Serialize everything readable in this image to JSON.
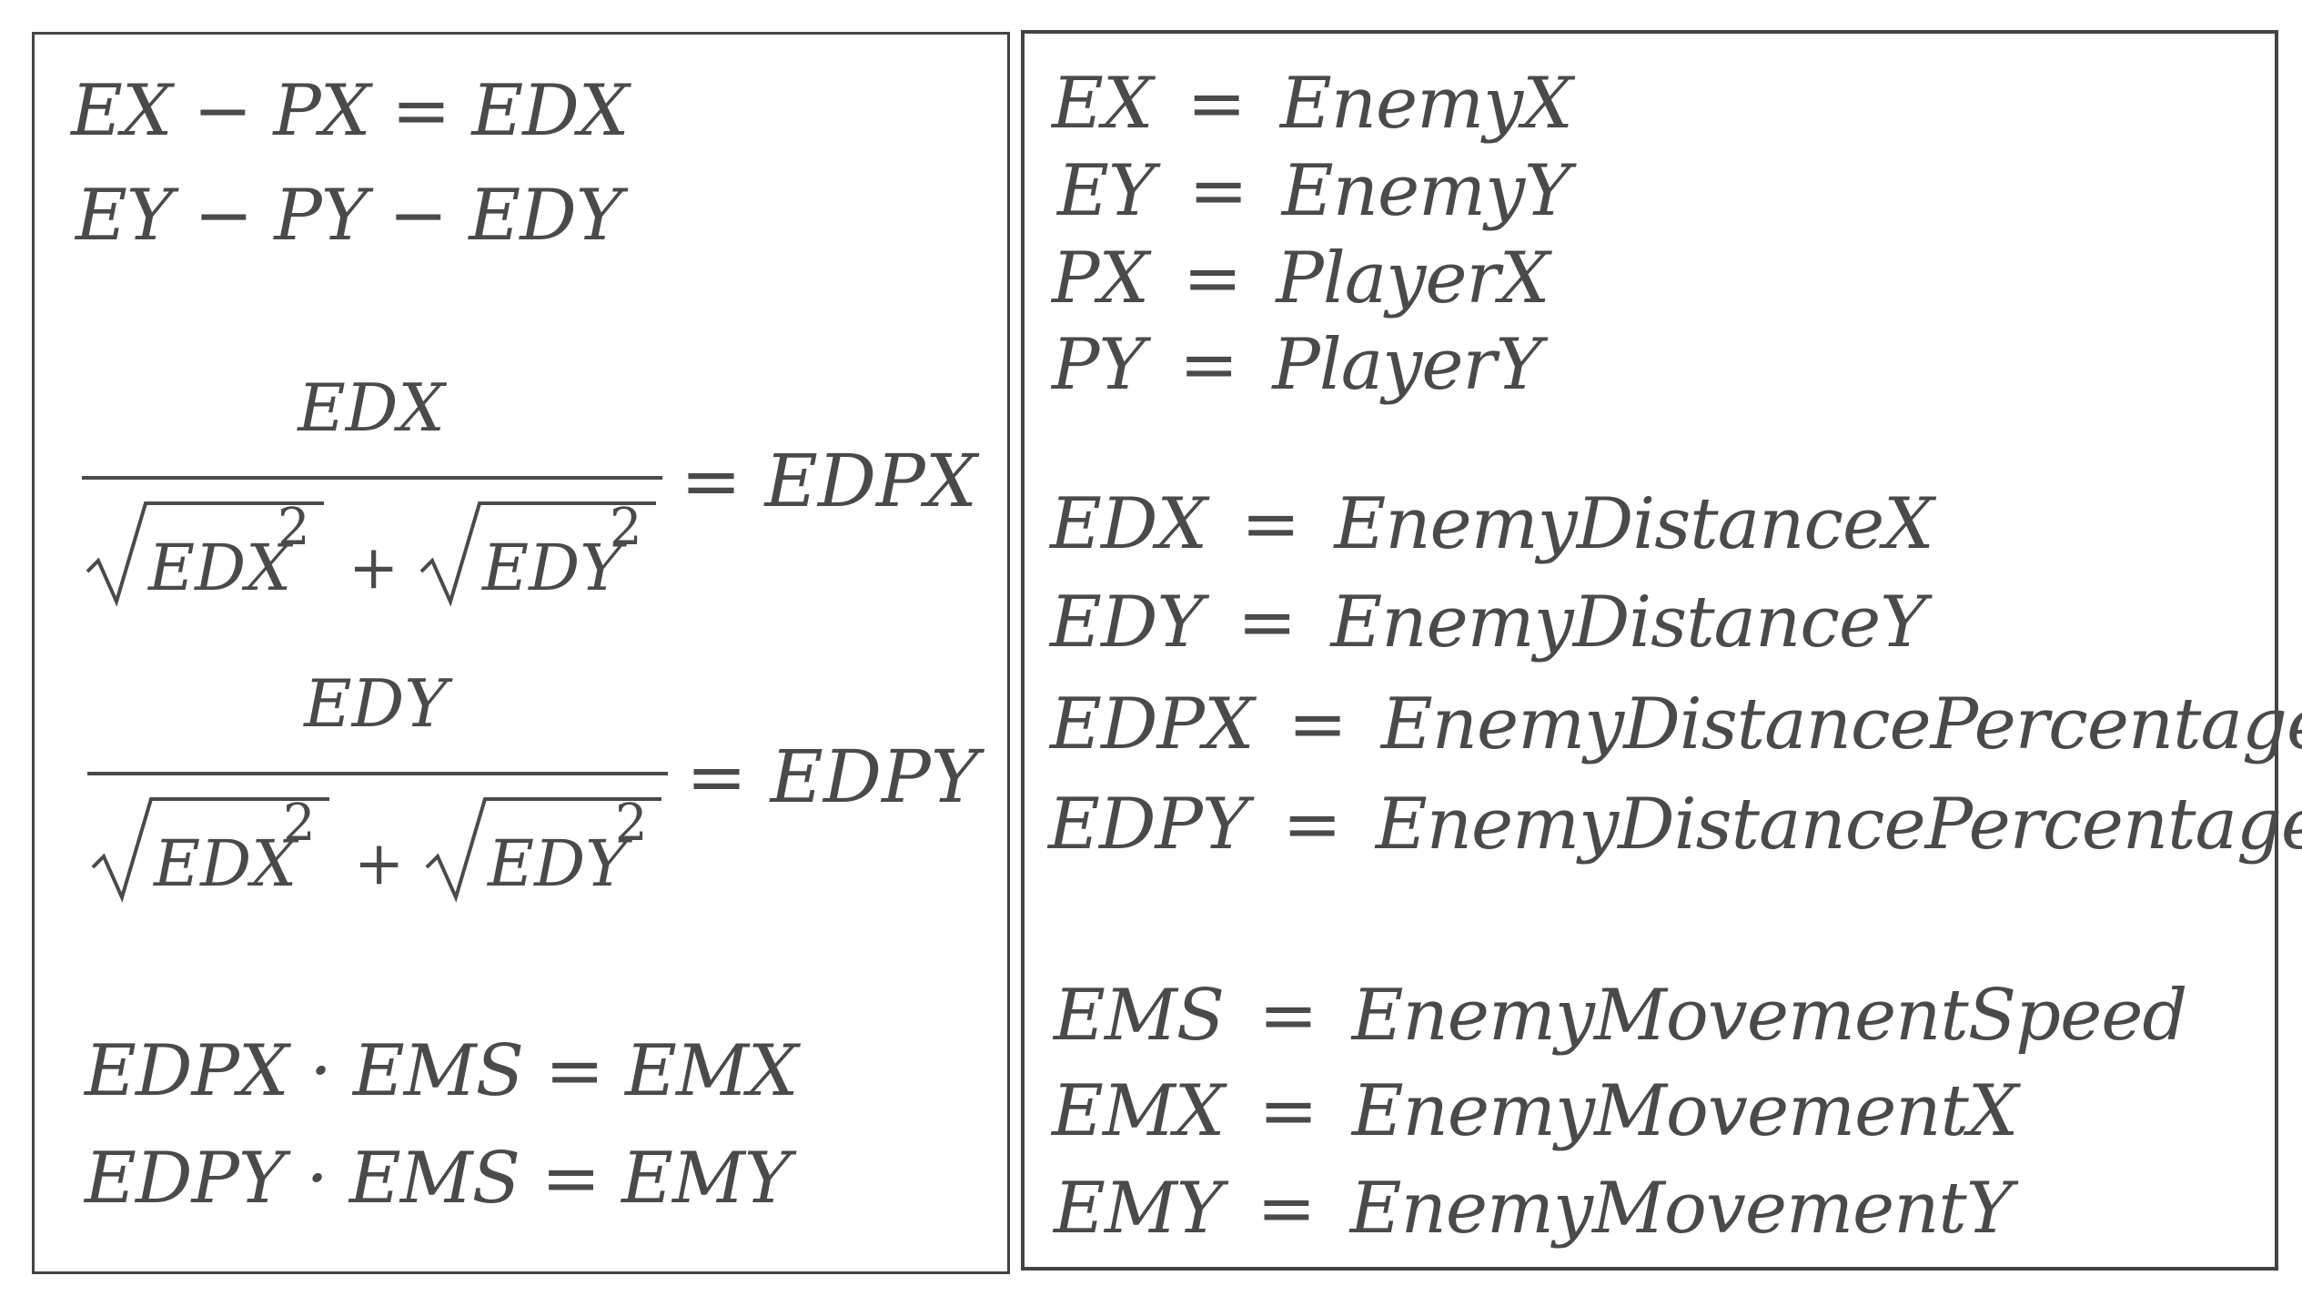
{
  "left_panel": {
    "equations": [
      "EX − PX = EDX",
      "EY − PY − EDY",
      "EDPX · EMS = EMX",
      "EDPY · EMS = EMY"
    ],
    "fractions": [
      {
        "numerator": "EDX",
        "denominator_term1": "EDX",
        "denominator_term2": "EDY",
        "exponent": "2",
        "plus": "+",
        "result": "= EDPX"
      },
      {
        "numerator": "EDY",
        "denominator_term1": "EDX",
        "denominator_term2": "EDY",
        "exponent": "2",
        "plus": "+",
        "result": "= EDPY"
      }
    ]
  },
  "right_panel": {
    "operator": "=",
    "definitions": [
      {
        "lhs": "EX",
        "rhs": "EnemyX"
      },
      {
        "lhs": "EY",
        "rhs": "EnemyY"
      },
      {
        "lhs": "PX",
        "rhs": "PlayerX"
      },
      {
        "lhs": "PY",
        "rhs": "PlayerY"
      },
      {
        "lhs": "EDX",
        "rhs": "EnemyDistanceX"
      },
      {
        "lhs": "EDY",
        "rhs": "EnemyDistanceY"
      },
      {
        "lhs": "EDPX",
        "rhs": "EnemyDistancePercentageX"
      },
      {
        "lhs": "EDPY",
        "rhs": "EnemyDistancePercentageY"
      },
      {
        "lhs": "EMS",
        "rhs": "EnemyMovementSpeed"
      },
      {
        "lhs": "EMX",
        "rhs": "EnemyMovementX"
      },
      {
        "lhs": "EMY",
        "rhs": "EnemyMovementY"
      }
    ]
  }
}
